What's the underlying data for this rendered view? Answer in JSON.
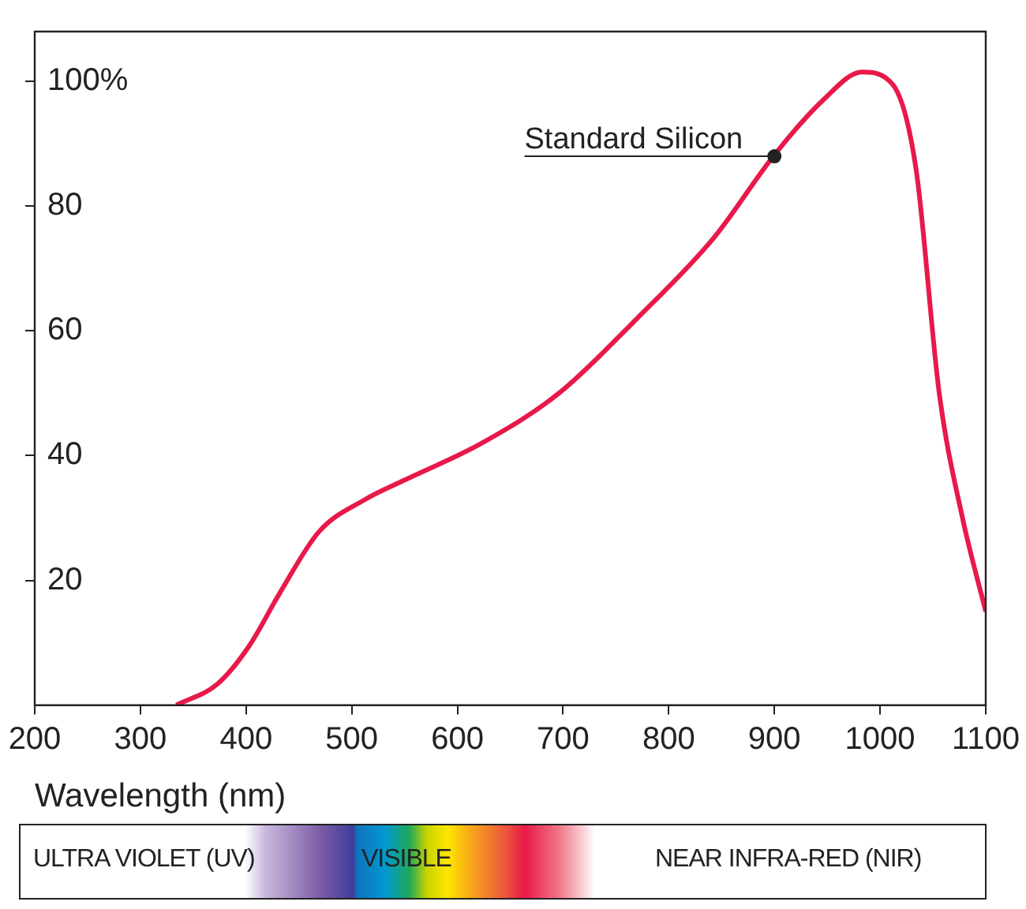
{
  "chart_data": {
    "type": "line",
    "xlabel": "Wavelength (nm)",
    "xlim": [
      200,
      1100
    ],
    "xticks": [
      200,
      300,
      400,
      500,
      600,
      700,
      800,
      900,
      1000,
      1100
    ],
    "ylim": [
      0,
      108
    ],
    "yticks": [
      20,
      40,
      60,
      80,
      {
        "value": 100,
        "label": "100%"
      }
    ],
    "grid": false,
    "legend": false,
    "marker": "none",
    "line_style": "solid",
    "series": [
      {
        "color": "#e8194a",
        "x": [
          334,
          373,
          403,
          432,
          469,
          513,
          549,
          623,
          696,
          770,
          843,
          899,
          946,
          983,
          1012,
          1034,
          1056,
          1078,
          1100
        ],
        "values": [
          0,
          3.4,
          9.5,
          18,
          27.8,
          33,
          36,
          42,
          50,
          62,
          75,
          88,
          97,
          101.5,
          99.5,
          86,
          50,
          30,
          15
        ]
      }
    ],
    "annotations": [
      "ULTRA VIOLET (UV)",
      "VISIBLE",
      "NEAR INFRA-RED (NIR)",
      {
        "text": "Standard Silicon",
        "x": 900,
        "y": 88
      }
    ]
  }
}
